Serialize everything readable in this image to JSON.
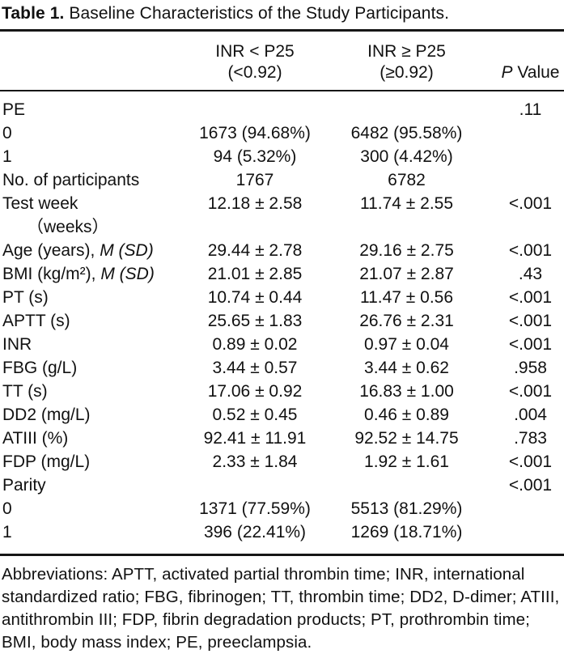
{
  "title": {
    "label": "Table 1.",
    "text": "Baseline Characteristics of the Study Participants."
  },
  "table": {
    "header": {
      "col1_line1": "INR < P25",
      "col1_line2": "(<0.92)",
      "col2_line1": "INR ≥ P25",
      "col2_line2": "(≥0.92)",
      "p_italic": "P",
      "p_rest": " Value"
    },
    "rows": [
      {
        "label": "PE",
        "p": ".11"
      },
      {
        "label": "0",
        "v1": "1673 (94.68%)",
        "v2": "6482 (95.58%)"
      },
      {
        "label": "1",
        "v1": "94 (5.32%)",
        "v2": "300 (4.42%)"
      },
      {
        "label": "No. of participants",
        "v1": "1767",
        "v2": "6782"
      },
      {
        "label": "Test week",
        "label2": "（weeks）",
        "v1": "12.18 ± 2.58",
        "v2": "11.74 ± 2.55",
        "p": "<.001"
      },
      {
        "label": "Age (years), ",
        "label_it": "M (SD)",
        "v1": "29.44 ± 2.78",
        "v2": "29.16 ± 2.75",
        "p": "<.001"
      },
      {
        "label": "BMI (kg/m²), ",
        "label_it": "M (SD)",
        "v1": "21.01 ± 2.85",
        "v2": "21.07 ± 2.87",
        "p": ".43"
      },
      {
        "label": "PT (s)",
        "v1": "10.74 ± 0.44",
        "v2": "11.47 ± 0.56",
        "p": "<.001"
      },
      {
        "label": "APTT (s)",
        "v1": "25.65 ± 1.83",
        "v2": "26.76 ± 2.31",
        "p": "<.001"
      },
      {
        "label": "INR",
        "v1": "0.89 ± 0.02",
        "v2": "0.97 ± 0.04",
        "p": "<.001"
      },
      {
        "label": "FBG (g/L)",
        "v1": "3.44 ± 0.57",
        "v2": "3.44 ± 0.62",
        "p": ".958"
      },
      {
        "label": "TT (s)",
        "v1": "17.06 ± 0.92",
        "v2": "16.83 ± 1.00",
        "p": "<.001"
      },
      {
        "label": "DD2 (mg/L)",
        "v1": "0.52 ± 0.45",
        "v2": "0.46 ± 0.89",
        "p": ".004"
      },
      {
        "label": "ATIII (%)",
        "v1": "92.41 ± 11.91",
        "v2": "92.52 ± 14.75",
        "p": ".783"
      },
      {
        "label": "FDP (mg/L)",
        "v1": "2.33 ± 1.84",
        "v2": "1.92 ± 1.61",
        "p": "<.001"
      },
      {
        "label": "Parity",
        "p": "<.001"
      },
      {
        "label": "0",
        "v1": "1371 (77.59%)",
        "v2": "5513 (81.29%)"
      },
      {
        "label": "1",
        "v1": "396 (22.41%)",
        "v2": "1269 (18.71%)"
      }
    ]
  },
  "footnote": "Abbreviations: APTT, activated partial thrombin time; INR, international standardized ratio; FBG, fibrinogen; TT, thrombin time; DD2, D-dimer; ATIII, antithrombin III; FDP, fibrin degradation products; PT, prothrombin time; BMI, body mass index; PE, preeclampsia."
}
